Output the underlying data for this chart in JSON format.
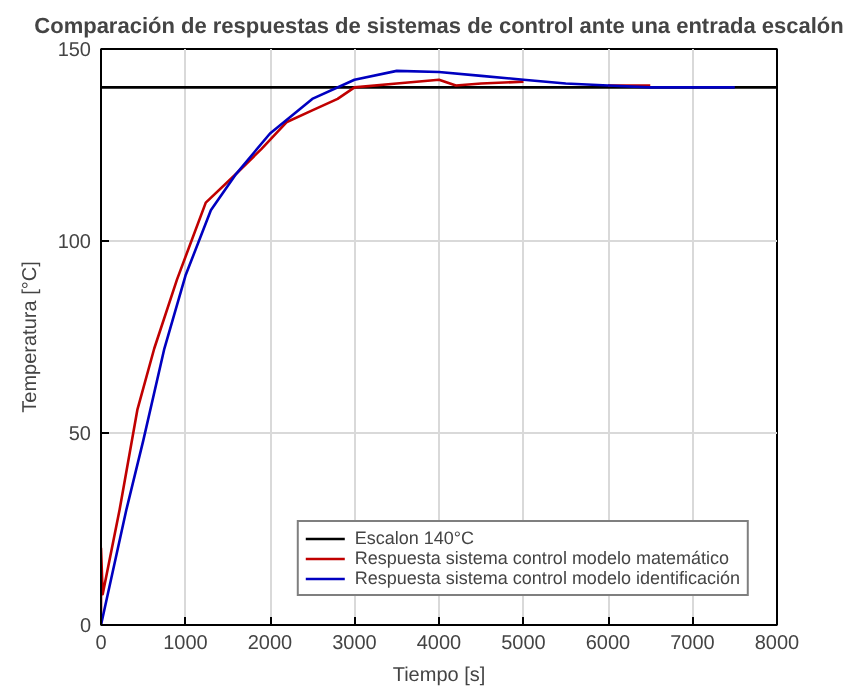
{
  "chart_data": {
    "type": "line",
    "title": "Comparación de respuestas de sistemas de control ante una entrada escalón",
    "xlabel": "Tiempo [s]",
    "ylabel": "Temperatura [°C]",
    "xlim": [
      0,
      8000
    ],
    "ylim": [
      0,
      150
    ],
    "xticks": [
      0,
      1000,
      2000,
      3000,
      4000,
      5000,
      6000,
      7000,
      8000
    ],
    "yticks": [
      0,
      50,
      100,
      150
    ],
    "grid": true,
    "legend": "bottom right",
    "line_style": "solid",
    "marker": "none",
    "series": [
      {
        "name": "Escalon 140°C",
        "color": "#000000",
        "x": [
          0,
          8000
        ],
        "values": [
          140,
          140
        ]
      },
      {
        "name": "Respuesta sistema control modelo matemático",
        "color": "#c00000",
        "x": [
          0,
          0,
          20,
          220,
          430,
          630,
          900,
          1240,
          1600,
          1900,
          2200,
          2500,
          2800,
          3000,
          3500,
          4000,
          4200,
          4500,
          5000,
          5500,
          6000,
          6500
        ],
        "values": [
          0,
          20,
          8,
          30,
          56,
          72,
          90,
          110,
          117.5,
          124,
          131,
          134,
          137,
          140,
          141,
          142,
          140.5,
          141,
          141.5,
          null,
          140.5,
          140.5
        ]
      },
      {
        "name": "Respuesta sistema control modelo identificación",
        "color": "#0000c0",
        "x": [
          0,
          300,
          500,
          750,
          1000,
          1300,
          1600,
          2000,
          2500,
          3000,
          3500,
          4000,
          4500,
          5000,
          5500,
          6000,
          6500,
          7000,
          7500
        ],
        "values": [
          0,
          30,
          48,
          72,
          91,
          108,
          117.5,
          128,
          137,
          142,
          144.3,
          144,
          143,
          142,
          141,
          140.5,
          140,
          140,
          140
        ]
      }
    ]
  }
}
